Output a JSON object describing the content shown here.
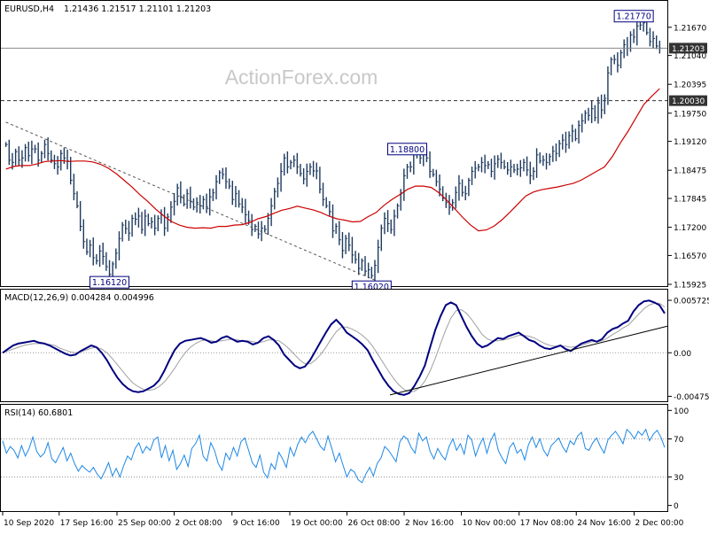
{
  "chart_data": [
    {
      "type": "candlestick",
      "symbol_label": "EURUSD,H4",
      "ohlc_header": "1.21436 1.21517 1.21101 1.21203",
      "watermark": "ActionForex.com",
      "yaxis_ticks": [
        "1.21670",
        "1.21040",
        "1.20395",
        "1.19750",
        "1.19120",
        "1.18475",
        "1.17845",
        "1.17200",
        "1.16570",
        "1.15925"
      ],
      "yaxis_tick_values": [
        1.2167,
        1.2104,
        1.20395,
        1.1975,
        1.1912,
        1.18475,
        1.17845,
        1.172,
        1.1657,
        1.15925
      ],
      "ylim": [
        1.15925,
        1.2222
      ],
      "price_tags": [
        {
          "text": "1.21203",
          "value": 1.21203,
          "style": "dark"
        },
        {
          "text": "1.20030",
          "value": 1.2003,
          "style": "dark"
        }
      ],
      "price_labels": [
        {
          "text": "1.21770",
          "value": 1.2177
        },
        {
          "text": "1.18800",
          "value": 1.188
        },
        {
          "text": "1.16120",
          "value": 1.1612
        },
        {
          "text": "1.16020",
          "value": 1.1602
        }
      ],
      "horizontal_lines": [
        {
          "value": 1.2003,
          "style": "dashed"
        },
        {
          "value": 1.21203,
          "style": "solid-gray"
        }
      ],
      "trendline_dashed": {
        "from": {
          "bar": 0,
          "value": 1.1955
        },
        "to": {
          "bar": 114,
          "value": 1.1602
        }
      },
      "close_series": [
        1.1905,
        1.187,
        1.1865,
        1.1889,
        1.187,
        1.1875,
        1.1898,
        1.188,
        1.1895,
        1.1895,
        1.187,
        1.1885,
        1.1905,
        1.1885,
        1.187,
        1.1862,
        1.1855,
        1.1885,
        1.1875,
        1.1868,
        1.1825,
        1.1795,
        1.1768,
        1.1722,
        1.1688,
        1.1665,
        1.168,
        1.1652,
        1.1645,
        1.1667,
        1.1655,
        1.1632,
        1.1615,
        1.1638,
        1.1662,
        1.1695,
        1.1725,
        1.1717,
        1.1707,
        1.174,
        1.1738,
        1.1745,
        1.1715,
        1.1745,
        1.1728,
        1.1732,
        1.1718,
        1.174,
        1.1748,
        1.1718,
        1.1743,
        1.1765,
        1.1778,
        1.1808,
        1.1788,
        1.1772,
        1.1795,
        1.1778,
        1.1765,
        1.1775,
        1.1768,
        1.1782,
        1.1765,
        1.1788,
        1.1797,
        1.1822,
        1.1842,
        1.1838,
        1.1822,
        1.1812,
        1.1782,
        1.1795,
        1.1772,
        1.1765,
        1.1748,
        1.1735,
        1.1715,
        1.1722,
        1.1705,
        1.1718,
        1.1715,
        1.174,
        1.1768,
        1.18,
        1.1818,
        1.1845,
        1.1875,
        1.1855,
        1.1865,
        1.187,
        1.1855,
        1.184,
        1.1828,
        1.1845,
        1.1855,
        1.1846,
        1.1846,
        1.1805,
        1.1782,
        1.1768,
        1.1755,
        1.1712,
        1.1722,
        1.1692,
        1.1668,
        1.1695,
        1.168,
        1.1658,
        1.1648,
        1.1628,
        1.1645,
        1.1622,
        1.1625,
        1.1612,
        1.1635,
        1.1675,
        1.1718,
        1.174,
        1.1728,
        1.1715,
        1.1745,
        1.1768,
        1.1795,
        1.1835,
        1.1855,
        1.1855,
        1.1882,
        1.1895,
        1.1875,
        1.1882,
        1.1875,
        1.1845,
        1.1838,
        1.1822,
        1.1805,
        1.1785,
        1.1775,
        1.1765,
        1.1775,
        1.1798,
        1.1818,
        1.1798,
        1.1795,
        1.1825,
        1.1845,
        1.1852,
        1.1855,
        1.1865,
        1.1858,
        1.186,
        1.1845,
        1.1862,
        1.1872,
        1.1865,
        1.1855,
        1.1848,
        1.1855,
        1.1848,
        1.185,
        1.1853,
        1.1865,
        1.1848,
        1.1835,
        1.1845,
        1.1882,
        1.1868,
        1.187,
        1.1865,
        1.1878,
        1.189,
        1.1885,
        1.1907,
        1.1915,
        1.1905,
        1.1925,
        1.1935,
        1.1918,
        1.1948,
        1.1958,
        1.1975,
        1.197,
        1.1985,
        1.1965,
        1.1998,
        1.1982,
        1.2008,
        1.2065,
        1.2095,
        1.2095,
        1.2082,
        1.211,
        1.2128,
        1.212,
        1.215,
        1.2145,
        1.217,
        1.2172,
        1.2177,
        1.2155,
        1.2135,
        1.2142,
        1.2125,
        1.21203
      ],
      "moving_average": {
        "from_bar": 0,
        "values": [
          1.185,
          1.1856,
          1.1858,
          1.1858,
          1.1862,
          1.1867,
          1.1868,
          1.1869,
          1.1867,
          1.1868,
          1.1868,
          1.1866,
          1.1861,
          1.1852,
          1.184,
          1.1825,
          1.181,
          1.1793,
          1.1778,
          1.1761,
          1.1746,
          1.1733,
          1.1725,
          1.172,
          1.1718,
          1.1719,
          1.1718,
          1.1722,
          1.1722,
          1.1725,
          1.1726,
          1.1731,
          1.1739,
          1.1744,
          1.1751,
          1.1758,
          1.1762,
          1.1767,
          1.1763,
          1.1759,
          1.1753,
          1.1745,
          1.1739,
          1.1736,
          1.1732,
          1.1733,
          1.1744,
          1.1753,
          1.1769,
          1.1782,
          1.1793,
          1.1805,
          1.1812,
          1.1812,
          1.1809,
          1.1797,
          1.178,
          1.1761,
          1.1742,
          1.1725,
          1.1712,
          1.1714,
          1.1723,
          1.1737,
          1.1754,
          1.1772,
          1.179,
          1.1799,
          1.1804,
          1.1807,
          1.181,
          1.1814,
          1.1818,
          1.1825,
          1.1835,
          1.1845,
          1.1855,
          1.1878,
          1.1908,
          1.1935,
          1.1965,
          1.1995,
          1.2013,
          1.203
        ]
      },
      "macd": {
        "label": "MACD(12,26,9) 0.004284 0.004996",
        "ticks": [
          "0.005725",
          "0.00",
          "-0.004755"
        ],
        "tick_values": [
          0.005725,
          0.0,
          -0.004755
        ],
        "ylim": [
          -0.0051,
          0.0066
        ],
        "macd_line": [
          0.0,
          0.0004,
          0.0008,
          0.001,
          0.0011,
          0.0012,
          0.0013,
          0.0011,
          0.001,
          0.0008,
          0.0005,
          0.0002,
          -0.0001,
          -0.0003,
          -0.0002,
          0.0002,
          0.0005,
          0.0008,
          0.0006,
          0.0,
          -0.0008,
          -0.0018,
          -0.0027,
          -0.0034,
          -0.0039,
          -0.0042,
          -0.0043,
          -0.0042,
          -0.0039,
          -0.0036,
          -0.003,
          -0.002,
          -0.0008,
          0.0003,
          0.001,
          0.0013,
          0.0014,
          0.0015,
          0.0016,
          0.0014,
          0.0011,
          0.0012,
          0.0016,
          0.0018,
          0.0015,
          0.0012,
          0.0013,
          0.0012,
          0.0009,
          0.0011,
          0.0016,
          0.0018,
          0.0014,
          0.0008,
          -0.0002,
          -0.0008,
          -0.0014,
          -0.0017,
          -0.0015,
          -0.0008,
          0.0002,
          0.0012,
          0.0022,
          0.0031,
          0.0036,
          0.003,
          0.0022,
          0.0018,
          0.0014,
          0.0009,
          0.0003,
          -0.0008,
          -0.0018,
          -0.0028,
          -0.0036,
          -0.0042,
          -0.0045,
          -0.0046,
          -0.0044,
          -0.0036,
          -0.0026,
          -0.0014,
          0.0006,
          0.0025,
          0.004,
          0.0052,
          0.0055,
          0.0052,
          0.004,
          0.0028,
          0.0018,
          0.001,
          0.0006,
          0.0008,
          0.0012,
          0.0016,
          0.0015,
          0.0018,
          0.002,
          0.0022,
          0.0018,
          0.0014,
          0.0012,
          0.0008,
          0.0005,
          0.0004,
          0.0006,
          0.0008,
          0.0004,
          0.0002,
          0.0006,
          0.001,
          0.0012,
          0.0014,
          0.0012,
          0.0015,
          0.0022,
          0.0026,
          0.0028,
          0.0032,
          0.0035,
          0.0045,
          0.0052,
          0.0056,
          0.0057,
          0.0055,
          0.0052,
          0.0043
        ],
        "signal_line": [
          0.0,
          0.0002,
          0.0004,
          0.0006,
          0.0008,
          0.0009,
          0.001,
          0.001,
          0.001,
          0.0009,
          0.0008,
          0.0005,
          0.0003,
          0.0001,
          0.0,
          0.0001,
          0.0003,
          0.0005,
          0.0006,
          0.0004,
          0.0,
          -0.0006,
          -0.0013,
          -0.002,
          -0.0027,
          -0.0033,
          -0.0037,
          -0.004,
          -0.0041,
          -0.004,
          -0.0037,
          -0.0032,
          -0.0025,
          -0.0017,
          -0.0008,
          0.0,
          0.0006,
          0.001,
          0.0013,
          0.0014,
          0.0013,
          0.0012,
          0.0013,
          0.0014,
          0.0015,
          0.0014,
          0.0013,
          0.0013,
          0.0012,
          0.0011,
          0.0012,
          0.0014,
          0.0014,
          0.0013,
          0.0009,
          0.0004,
          -0.0002,
          -0.0008,
          -0.0012,
          -0.0012,
          -0.0008,
          -0.0002,
          0.0006,
          0.0015,
          0.0023,
          0.0028,
          0.0028,
          0.0026,
          0.0023,
          0.0019,
          0.0014,
          0.0007,
          -0.0002,
          -0.0011,
          -0.002,
          -0.0028,
          -0.0035,
          -0.004,
          -0.0043,
          -0.0042,
          -0.0038,
          -0.0031,
          -0.002,
          -0.0006,
          0.001,
          0.0025,
          0.0038,
          0.0046,
          0.0047,
          0.0043,
          0.0036,
          0.0028,
          0.002,
          0.0015,
          0.0013,
          0.0013,
          0.0014,
          0.0015,
          0.0017,
          0.0019,
          0.0019,
          0.0018,
          0.0016,
          0.0013,
          0.001,
          0.0008,
          0.0007,
          0.0008,
          0.0007,
          0.0006,
          0.0007,
          0.0008,
          0.001,
          0.0012,
          0.0012,
          0.0013,
          0.0016,
          0.002,
          0.0023,
          0.0027,
          0.003,
          0.0036,
          0.0042,
          0.0048,
          0.0052,
          0.0054,
          0.0054,
          0.005
        ],
        "trendline": {
          "from": {
            "x_frac": 0.585,
            "value": -0.0046
          },
          "to": {
            "x_frac": 1.0,
            "value": 0.0029
          }
        }
      },
      "rsi": {
        "label": "RSI(14) 60.6801",
        "ticks": [
          "100",
          "70",
          "30",
          "0"
        ],
        "tick_values": [
          100,
          70,
          30,
          0
        ],
        "ylim": [
          -5,
          105
        ],
        "levels": [
          70,
          30
        ],
        "values": [
          68,
          55,
          62,
          58,
          50,
          63,
          52,
          60,
          72,
          57,
          51,
          55,
          66,
          49,
          45,
          53,
          61,
          47,
          55,
          44,
          36,
          42,
          38,
          35,
          40,
          33,
          28,
          36,
          45,
          31,
          39,
          30,
          42,
          52,
          48,
          60,
          66,
          55,
          62,
          58,
          69,
          72,
          50,
          63,
          47,
          58,
          38,
          44,
          53,
          41,
          60,
          65,
          74,
          52,
          47,
          66,
          58,
          44,
          37,
          55,
          48,
          61,
          52,
          67,
          71,
          58,
          45,
          40,
          53,
          35,
          29,
          44,
          38,
          56,
          49,
          40,
          61,
          52,
          64,
          72,
          66,
          74,
          78,
          70,
          62,
          58,
          73,
          60,
          46,
          55,
          42,
          30,
          38,
          35,
          27,
          24,
          33,
          40,
          31,
          44,
          50,
          62,
          58,
          52,
          46,
          67,
          73,
          70,
          61,
          55,
          76,
          68,
          72,
          57,
          49,
          60,
          53,
          48,
          62,
          70,
          58,
          65,
          54,
          74,
          69,
          52,
          63,
          71,
          55,
          68,
          76,
          58,
          50,
          44,
          61,
          66,
          55,
          59,
          48,
          64,
          72,
          61,
          70,
          58,
          52,
          63,
          67,
          71,
          62,
          56,
          68,
          64,
          73,
          77,
          60,
          58,
          66,
          71,
          62,
          55,
          69,
          74,
          78,
          72,
          65,
          80,
          76,
          70,
          78,
          74,
          80,
          68,
          75,
          79,
          72,
          61
        ]
      },
      "x_ticks": [
        "10 Sep 2020",
        "17 Sep 16:00",
        "25 Sep 00:00",
        "2 Oct 08:00",
        "9 Oct 16:00",
        "19 Oct 00:00",
        "26 Oct 08:00",
        "2 Nov 16:00",
        "10 Nov 00:00",
        "17 Nov 08:00",
        "24 Nov 16:00",
        "2 Dec 00:00"
      ],
      "x_tick_fracs": [
        0.0,
        0.085,
        0.172,
        0.258,
        0.345,
        0.432,
        0.518,
        0.604,
        0.69,
        0.777,
        0.863,
        0.95
      ],
      "colors": {
        "background": "#ffffff",
        "border": "#000000",
        "bar": "#1e3a5f",
        "moving_average": "#cc0000",
        "macd_line": "#000080",
        "signal_line": "#a0a0a0",
        "rsi_line": "#1e88e5",
        "text": "#000000",
        "label_box_border": "#000080",
        "label_box_text": "#000080",
        "tag_dark_bg": "#333333",
        "tag_dark_text": "#ffffff",
        "watermark": "#c8c8c8",
        "dotted_grid": "#999999"
      }
    }
  ]
}
